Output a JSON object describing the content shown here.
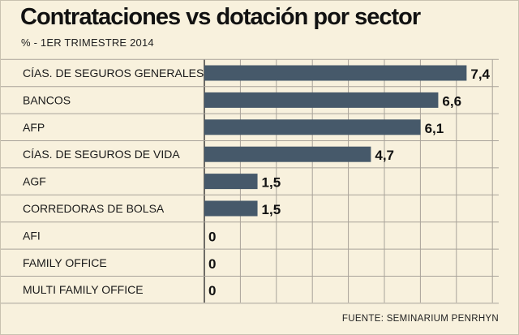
{
  "chart_data": {
    "type": "bar",
    "orientation": "horizontal",
    "title": "Contrataciones vs dotación por sector",
    "subtitle": "% - 1ER TRIMESTRE 2014",
    "source": "FUENTE: SEMINARIUM PENRHYN",
    "categories": [
      "CÍAS. DE SEGUROS GENERALES",
      "BANCOS",
      "AFP",
      "CÍAS. DE SEGUROS DE VIDA",
      "AGF",
      "CORREDORAS DE BOLSA",
      "AFI",
      "FAMILY OFFICE",
      "MULTI FAMILY OFFICE"
    ],
    "values": [
      7.4,
      6.6,
      6.1,
      4.7,
      1.5,
      1.5,
      0,
      0,
      0
    ],
    "value_labels": [
      "7,4",
      "6,6",
      "6,1",
      "4,7",
      "1,5",
      "1,5",
      "0",
      "0",
      "0"
    ],
    "xlim": [
      0,
      8
    ],
    "grid": true,
    "bar_color": "#46596a"
  }
}
